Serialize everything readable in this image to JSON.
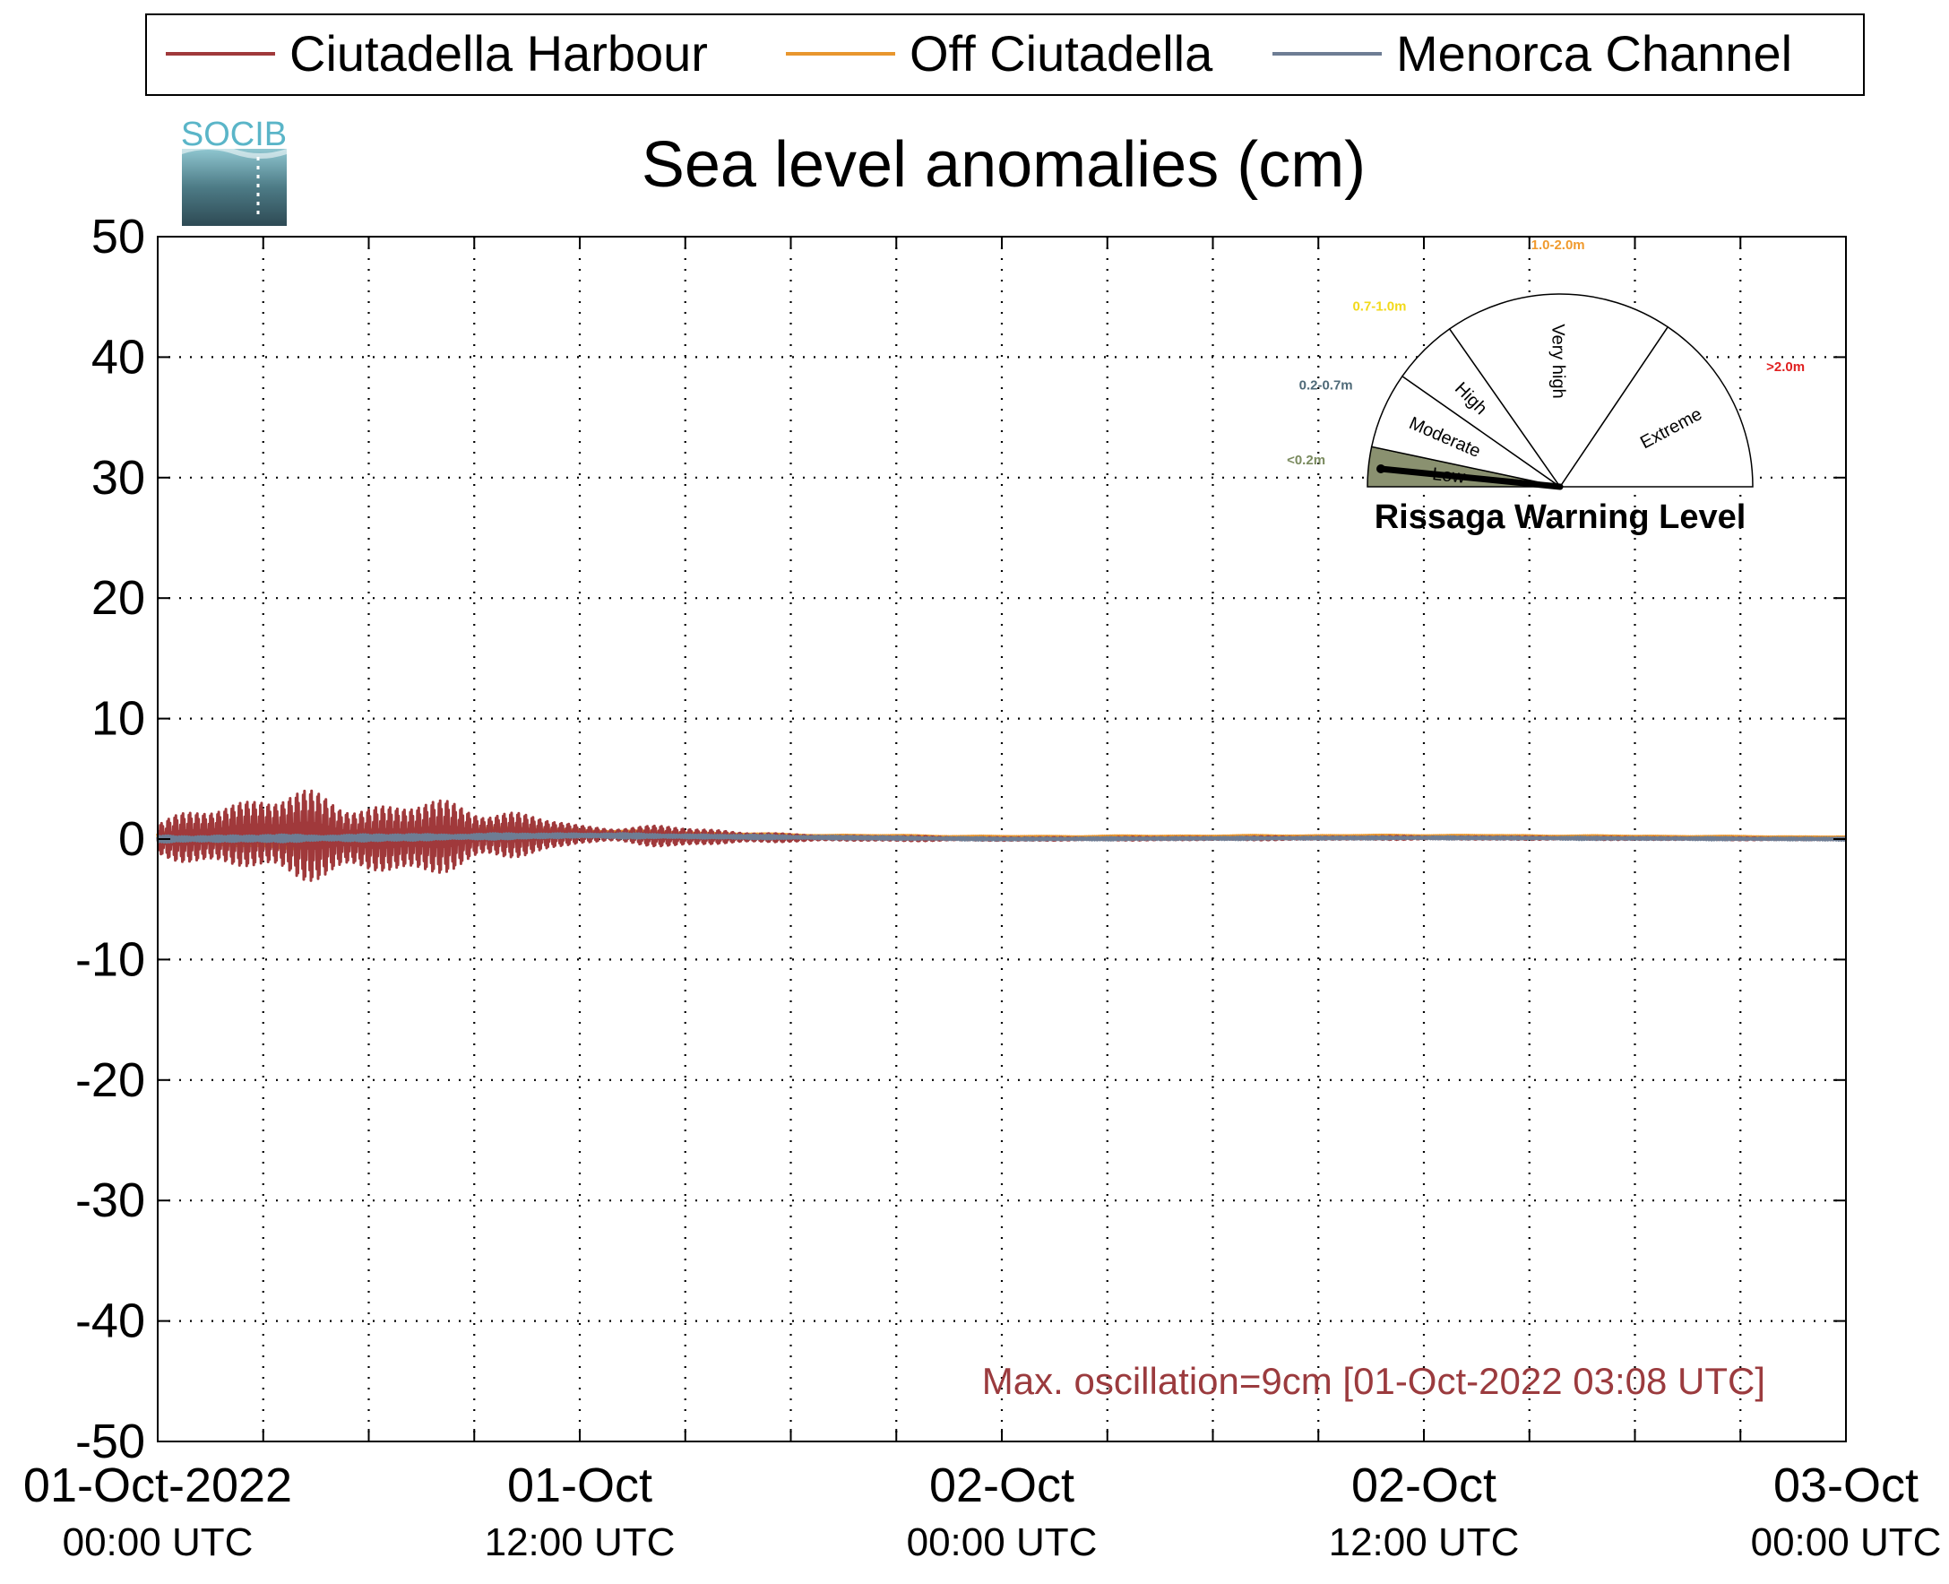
{
  "chart_data": {
    "type": "line",
    "title": "Sea level anomalies (cm)",
    "xlabel": "",
    "ylabel": "",
    "ylim": [
      -50,
      50
    ],
    "yticks": [
      50,
      40,
      30,
      20,
      10,
      0,
      -10,
      -20,
      -30,
      -40,
      -50
    ],
    "ytick_labels": [
      "50",
      "40",
      "30",
      "20",
      "10",
      "0",
      "-10",
      "-20",
      "-30",
      "-40",
      "-50"
    ],
    "xlim": [
      "2022-10-01T00:00Z",
      "2022-10-03T00:00Z"
    ],
    "x_ticks": [
      {
        "line1": "01-Oct-2022",
        "line2": "00:00 UTC"
      },
      {
        "line1": "01-Oct",
        "line2": "12:00 UTC"
      },
      {
        "line1": "02-Oct",
        "line2": "00:00 UTC"
      },
      {
        "line1": "02-Oct",
        "line2": "12:00 UTC"
      },
      {
        "line1": "03-Oct",
        "line2": "00:00 UTC"
      }
    ],
    "grid": true,
    "legend_position": "top",
    "series": [
      {
        "name": "Ciutadella Harbour",
        "color": "#a0393b",
        "x": [
          "2022-10-01T00:00Z",
          "2022-10-01T03:00Z",
          "2022-10-01T06:00Z",
          "2022-10-01T09:00Z",
          "2022-10-01T12:00Z",
          "2022-10-01T15:00Z",
          "2022-10-01T18:00Z",
          "2022-10-02T00:00Z",
          "2022-10-02T12:00Z",
          "2022-10-03T00:00Z"
        ],
        "y": [
          0,
          0.5,
          0,
          0.3,
          0.4,
          0.2,
          0.1,
          0,
          0.1,
          0
        ],
        "amplitude": [
          1.5,
          4,
          3.5,
          3,
          0.8,
          0.9,
          0.3,
          0.15,
          0.15,
          0.1
        ]
      },
      {
        "name": "Off Ciutadella",
        "color": "#e8962e",
        "x": [
          "2022-10-01T00:00Z",
          "2022-10-01T03:00Z",
          "2022-10-01T06:00Z",
          "2022-10-01T09:00Z",
          "2022-10-01T12:00Z",
          "2022-10-01T18:00Z",
          "2022-10-02T00:00Z",
          "2022-10-02T12:00Z",
          "2022-10-03T00:00Z"
        ],
        "y": [
          0,
          0,
          0,
          0.5,
          0.5,
          0.2,
          0.1,
          0.2,
          0.1
        ],
        "amplitude": [
          0.5,
          1.2,
          1,
          0.6,
          0.3,
          0.2,
          0.15,
          0.15,
          0.1
        ]
      },
      {
        "name": "Menorca Channel",
        "color": "#6e7d94",
        "x": [
          "2022-10-01T00:00Z",
          "2022-10-01T06:00Z",
          "2022-10-01T12:00Z",
          "2022-10-02T00:00Z",
          "2022-10-02T12:00Z",
          "2022-10-03T00:00Z"
        ],
        "y": [
          0,
          0.1,
          0.3,
          0,
          0.1,
          0
        ],
        "amplitude": [
          0.3,
          0.3,
          0.2,
          0.1,
          0.1,
          0.1
        ]
      }
    ],
    "annotation": {
      "text": "Max. oscillation=9cm [01-Oct-2022 03:08 UTC]",
      "color": "#9b3b3e",
      "position": "bottom-right"
    }
  },
  "logo": {
    "text": "SOCIB"
  },
  "warning_gauge": {
    "title": "Rissaga Warning Level",
    "current_level": "Low",
    "sectors": [
      {
        "name": "Low",
        "range": "<0.2m",
        "range_color": "#7a8a5e",
        "fill": "#8a9170",
        "active": true
      },
      {
        "name": "Moderate",
        "range": "0.2-0.7m",
        "range_color": "#4f6a78",
        "fill": "#ffffff",
        "active": false
      },
      {
        "name": "High",
        "range": "0.7-1.0m",
        "range_color": "#f2d91a",
        "fill": "#ffffff",
        "active": false
      },
      {
        "name": "Very high",
        "range": "1.0-2.0m",
        "range_color": "#f09a2e",
        "fill": "#ffffff",
        "active": false
      },
      {
        "name": "Extreme",
        "range": ">2.0m",
        "range_color": "#e02020",
        "fill": "#ffffff",
        "active": false
      }
    ]
  }
}
